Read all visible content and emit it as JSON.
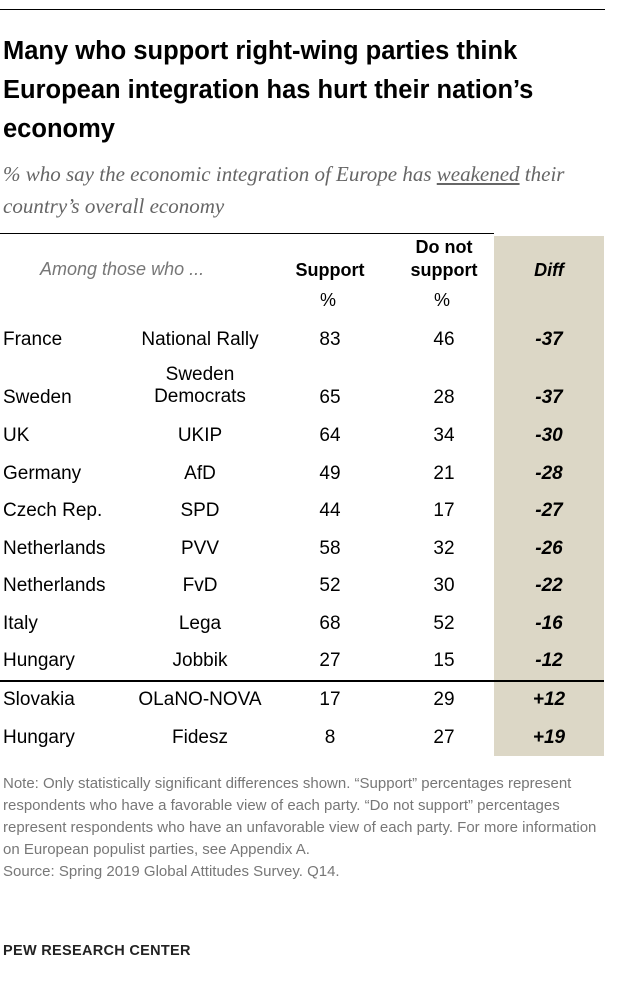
{
  "chart_data": {
    "type": "table",
    "title": "Many who support right-wing parties think European integration has hurt their nation’s economy",
    "subtitle_pre": "% who say the economic integration of Europe has ",
    "subtitle_underlined": "weakened",
    "subtitle_post": " their country’s overall economy",
    "headers": {
      "among": "Among those who ...",
      "support": "Support",
      "do_not_1": "Do not",
      "do_not_2": "support",
      "diff": "Diff",
      "pct": "%"
    },
    "rows": [
      {
        "country": "France",
        "party": "National Rally",
        "support": 83,
        "do_not_support": 46,
        "diff": "-37"
      },
      {
        "country": "Sweden",
        "party": "Sweden Democrats",
        "support": 65,
        "do_not_support": 28,
        "diff": "-37"
      },
      {
        "country": "UK",
        "party": "UKIP",
        "support": 64,
        "do_not_support": 34,
        "diff": "-30"
      },
      {
        "country": "Germany",
        "party": "AfD",
        "support": 49,
        "do_not_support": 21,
        "diff": "-28"
      },
      {
        "country": "Czech Rep.",
        "party": "SPD",
        "support": 44,
        "do_not_support": 17,
        "diff": "-27"
      },
      {
        "country": "Netherlands",
        "party": "PVV",
        "support": 58,
        "do_not_support": 32,
        "diff": "-26"
      },
      {
        "country": "Netherlands",
        "party": "FvD",
        "support": 52,
        "do_not_support": 30,
        "diff": "-22"
      },
      {
        "country": "Italy",
        "party": "Lega",
        "support": 68,
        "do_not_support": 52,
        "diff": "-16"
      },
      {
        "country": "Hungary",
        "party": "Jobbik",
        "support": 27,
        "do_not_support": 15,
        "diff": "-12"
      },
      {
        "country": "Slovakia",
        "party": "OLaNO-NOVA",
        "support": 17,
        "do_not_support": 29,
        "diff": "+12"
      },
      {
        "country": "Hungary",
        "party": "Fidesz",
        "support": 8,
        "do_not_support": 27,
        "diff": "+19"
      }
    ],
    "diff_color": "#dcd7c6"
  },
  "note": "Note: Only statistically significant differences shown. “Support” percentages represent respondents who have a favorable view of each party. “Do not support” percentages represent respondents who have an unfavorable view of each party. For more information on European populist parties, see Appendix A.",
  "source": "Source: Spring 2019 Global Attitudes Survey. Q14.",
  "brand": "PEW RESEARCH CENTER"
}
